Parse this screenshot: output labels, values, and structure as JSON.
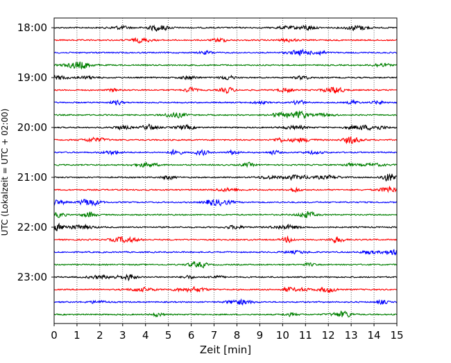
{
  "chart_data": {
    "type": "line",
    "title": "",
    "xlabel": "Zeit  [min]",
    "ylabel": "UTC (Lokalzeit = UTC + 02:00)",
    "xlim": [
      0,
      15
    ],
    "x_ticks": [
      "0",
      "1",
      "2",
      "3",
      "4",
      "5",
      "6",
      "7",
      "8",
      "9",
      "10",
      "11",
      "12",
      "13",
      "14",
      "15"
    ],
    "y_tick_labels": [
      "18:00",
      "19:00",
      "20:00",
      "21:00",
      "22:00",
      "23:00"
    ],
    "start_time": "18:00",
    "trace_interval_minutes": 15,
    "trace_count": 24,
    "trace_colors": [
      "#000000",
      "#ff0000",
      "#0000ff",
      "#008000"
    ],
    "grid_x": true,
    "grid_style": "dotted",
    "trace_kind": "seismogram"
  }
}
